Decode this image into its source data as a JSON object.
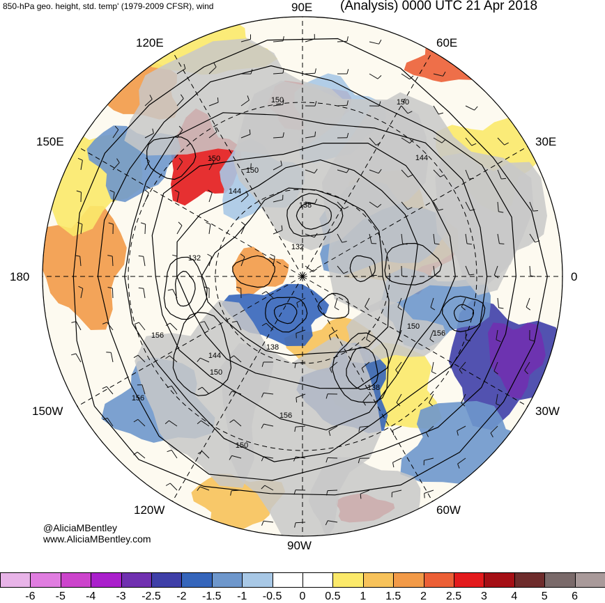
{
  "header": {
    "left_title": "850-hPa geo. height, std. temp' (1979-2009 CFSR), wind",
    "right_title": "(Analysis) 0000 UTC 21 Apr 2018"
  },
  "longitude_labels": [
    {
      "id": "90E",
      "text": "90E"
    },
    {
      "id": "60E",
      "text": "60E"
    },
    {
      "id": "30E",
      "text": "30E"
    },
    {
      "id": "0",
      "text": "0"
    },
    {
      "id": "30W",
      "text": "30W"
    },
    {
      "id": "60W",
      "text": "60W"
    },
    {
      "id": "90W",
      "text": "90W"
    },
    {
      "id": "120W",
      "text": "120W"
    },
    {
      "id": "150W",
      "text": "150W"
    },
    {
      "id": "180",
      "text": "180"
    },
    {
      "id": "150E",
      "text": "150E"
    },
    {
      "id": "120E",
      "text": "120E"
    }
  ],
  "contour_labels": [
    "150",
    "150",
    "150",
    "144",
    "150",
    "144",
    "138",
    "132",
    "132",
    "138",
    "150",
    "156",
    "156",
    "144",
    "150",
    "138",
    "156",
    "156",
    "150"
  ],
  "credit": {
    "handle": "@AliciaMBentley",
    "website": "www.AliciaMBentley.com"
  },
  "colorbar": {
    "ticks": [
      "-6",
      "-5",
      "-4",
      "-3",
      "-2.5",
      "-2",
      "-1.5",
      "-1",
      "-0.5",
      "0",
      "0.5",
      "1",
      "1.5",
      "2",
      "2.5",
      "3",
      "4",
      "5",
      "6"
    ],
    "colors": [
      "#e8b4e8",
      "#e07de0",
      "#cc44cc",
      "#aa1fcc",
      "#7030b0",
      "#3f3fa8",
      "#3565bb",
      "#6e97cc",
      "#a8c8e6",
      "#ffffff",
      "#ffffff",
      "#fbe96a",
      "#f7c25a",
      "#f29a48",
      "#ec5f36",
      "#e31a1c",
      "#a50f15",
      "#6e2c2c",
      "#7a6a6a",
      "#a99a9a"
    ]
  },
  "colors": {
    "land": "#c8c8c8",
    "ocean": "#ffffff",
    "warm": "#ec5f36",
    "cold": "#3565bb",
    "contour": "#000000"
  }
}
